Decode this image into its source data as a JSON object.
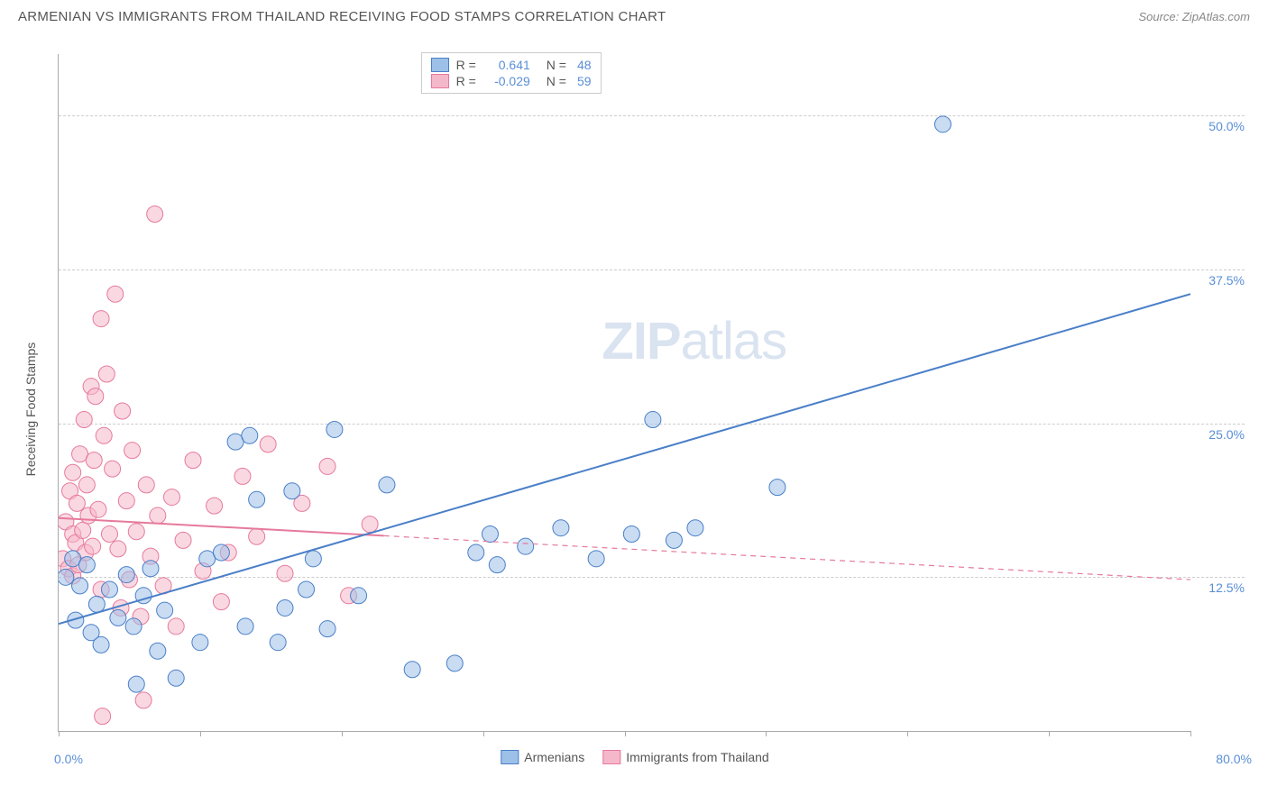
{
  "header": {
    "title": "ARMENIAN VS IMMIGRANTS FROM THAILAND RECEIVING FOOD STAMPS CORRELATION CHART",
    "source_prefix": "Source: ",
    "source": "ZipAtlas.com"
  },
  "ylabel": "Receiving Food Stamps",
  "watermark": {
    "zip": "ZIP",
    "atlas": "atlas"
  },
  "chart": {
    "type": "scatter",
    "xlim": [
      0,
      80
    ],
    "ylim": [
      0,
      55
    ],
    "xlabel_min": "0.0%",
    "xlabel_max": "80.0%",
    "yticks": [
      {
        "value": 12.5,
        "label": "12.5%"
      },
      {
        "value": 25.0,
        "label": "25.0%"
      },
      {
        "value": 37.5,
        "label": "37.5%"
      },
      {
        "value": 50.0,
        "label": "50.0%"
      }
    ],
    "xticks_minor": [
      0,
      10,
      20,
      30,
      40,
      50,
      60,
      70,
      80
    ],
    "grid_color": "#cccccc",
    "axis_color": "#aaaaaa",
    "background_color": "#ffffff",
    "marker_radius": 9,
    "marker_opacity": 0.55,
    "line_width": 2
  },
  "series": {
    "armenians": {
      "label": "Armenians",
      "color_stroke": "#4a7fc8",
      "color_fill": "#9cc0e8",
      "R_label": "R =",
      "R": "0.641",
      "N_label": "N =",
      "N": "48",
      "regression": {
        "x1": 0,
        "y1": 8.7,
        "x2": 80,
        "y2": 35.5,
        "solid_until_x": 80
      },
      "points": [
        {
          "x": 0.5,
          "y": 12.5
        },
        {
          "x": 1,
          "y": 14
        },
        {
          "x": 1.2,
          "y": 9
        },
        {
          "x": 1.5,
          "y": 11.8
        },
        {
          "x": 2,
          "y": 13.5
        },
        {
          "x": 2.3,
          "y": 8
        },
        {
          "x": 2.7,
          "y": 10.3
        },
        {
          "x": 3,
          "y": 7
        },
        {
          "x": 3.6,
          "y": 11.5
        },
        {
          "x": 4.2,
          "y": 9.2
        },
        {
          "x": 4.8,
          "y": 12.7
        },
        {
          "x": 5.3,
          "y": 8.5
        },
        {
          "x": 5.5,
          "y": 3.8
        },
        {
          "x": 6,
          "y": 11
        },
        {
          "x": 7,
          "y": 6.5
        },
        {
          "x": 7.5,
          "y": 9.8
        },
        {
          "x": 8.3,
          "y": 4.3
        },
        {
          "x": 10,
          "y": 7.2
        },
        {
          "x": 10.5,
          "y": 14
        },
        {
          "x": 12.5,
          "y": 23.5
        },
        {
          "x": 13.2,
          "y": 8.5
        },
        {
          "x": 13.5,
          "y": 24
        },
        {
          "x": 14,
          "y": 18.8
        },
        {
          "x": 15.5,
          "y": 7.2
        },
        {
          "x": 16,
          "y": 10
        },
        {
          "x": 16.5,
          "y": 19.5
        },
        {
          "x": 17.5,
          "y": 11.5
        },
        {
          "x": 18,
          "y": 14
        },
        {
          "x": 19,
          "y": 8.3
        },
        {
          "x": 19.5,
          "y": 24.5
        },
        {
          "x": 21.2,
          "y": 11
        },
        {
          "x": 23.2,
          "y": 20
        },
        {
          "x": 25,
          "y": 5
        },
        {
          "x": 28,
          "y": 5.5
        },
        {
          "x": 29.5,
          "y": 14.5
        },
        {
          "x": 30.5,
          "y": 16
        },
        {
          "x": 31,
          "y": 13.5
        },
        {
          "x": 33,
          "y": 15
        },
        {
          "x": 35.5,
          "y": 16.5
        },
        {
          "x": 38,
          "y": 14
        },
        {
          "x": 40.5,
          "y": 16
        },
        {
          "x": 42,
          "y": 25.3
        },
        {
          "x": 43.5,
          "y": 15.5
        },
        {
          "x": 45,
          "y": 16.5
        },
        {
          "x": 50.8,
          "y": 19.8
        },
        {
          "x": 62.5,
          "y": 49.3
        },
        {
          "x": 11.5,
          "y": 14.5
        },
        {
          "x": 6.5,
          "y": 13.2
        }
      ]
    },
    "thailand": {
      "label": "Immigrants from Thailand",
      "color_stroke": "#e67a9c",
      "color_fill": "#f5b8ca",
      "R_label": "R =",
      "R": "-0.029",
      "N_label": "N =",
      "N": "59",
      "regression": {
        "x1": 0,
        "y1": 17.3,
        "x2": 80,
        "y2": 12.3,
        "solid_until_x": 23
      },
      "points": [
        {
          "x": 0.3,
          "y": 14
        },
        {
          "x": 0.5,
          "y": 17
        },
        {
          "x": 0.7,
          "y": 13.2
        },
        {
          "x": 0.8,
          "y": 19.5
        },
        {
          "x": 1,
          "y": 16
        },
        {
          "x": 1,
          "y": 21
        },
        {
          "x": 1,
          "y": 12.6
        },
        {
          "x": 1.2,
          "y": 15.3
        },
        {
          "x": 1.3,
          "y": 18.5
        },
        {
          "x": 1.4,
          "y": 13.5
        },
        {
          "x": 1.5,
          "y": 22.5
        },
        {
          "x": 1.7,
          "y": 16.3
        },
        {
          "x": 1.8,
          "y": 25.3
        },
        {
          "x": 1.9,
          "y": 14.5
        },
        {
          "x": 2,
          "y": 20
        },
        {
          "x": 2.1,
          "y": 17.5
        },
        {
          "x": 2.3,
          "y": 28
        },
        {
          "x": 2.4,
          "y": 15
        },
        {
          "x": 2.5,
          "y": 22
        },
        {
          "x": 2.6,
          "y": 27.2
        },
        {
          "x": 2.8,
          "y": 18
        },
        {
          "x": 3,
          "y": 33.5
        },
        {
          "x": 3,
          "y": 11.5
        },
        {
          "x": 3.2,
          "y": 24
        },
        {
          "x": 3.4,
          "y": 29
        },
        {
          "x": 3.6,
          "y": 16
        },
        {
          "x": 3.8,
          "y": 21.3
        },
        {
          "x": 4,
          "y": 35.5
        },
        {
          "x": 4.2,
          "y": 14.8
        },
        {
          "x": 4.4,
          "y": 10
        },
        {
          "x": 4.5,
          "y": 26
        },
        {
          "x": 4.8,
          "y": 18.7
        },
        {
          "x": 5,
          "y": 12.3
        },
        {
          "x": 5.2,
          "y": 22.8
        },
        {
          "x": 5.5,
          "y": 16.2
        },
        {
          "x": 5.8,
          "y": 9.3
        },
        {
          "x": 6,
          "y": 2.5
        },
        {
          "x": 6.2,
          "y": 20
        },
        {
          "x": 6.5,
          "y": 14.2
        },
        {
          "x": 6.8,
          "y": 42
        },
        {
          "x": 7,
          "y": 17.5
        },
        {
          "x": 7.4,
          "y": 11.8
        },
        {
          "x": 8,
          "y": 19
        },
        {
          "x": 8.3,
          "y": 8.5
        },
        {
          "x": 8.8,
          "y": 15.5
        },
        {
          "x": 9.5,
          "y": 22
        },
        {
          "x": 10.2,
          "y": 13
        },
        {
          "x": 11,
          "y": 18.3
        },
        {
          "x": 11.5,
          "y": 10.5
        },
        {
          "x": 12,
          "y": 14.5
        },
        {
          "x": 13,
          "y": 20.7
        },
        {
          "x": 14,
          "y": 15.8
        },
        {
          "x": 14.8,
          "y": 23.3
        },
        {
          "x": 16,
          "y": 12.8
        },
        {
          "x": 17.2,
          "y": 18.5
        },
        {
          "x": 19,
          "y": 21.5
        },
        {
          "x": 20.5,
          "y": 11
        },
        {
          "x": 22,
          "y": 16.8
        },
        {
          "x": 3.1,
          "y": 1.2
        }
      ]
    }
  }
}
